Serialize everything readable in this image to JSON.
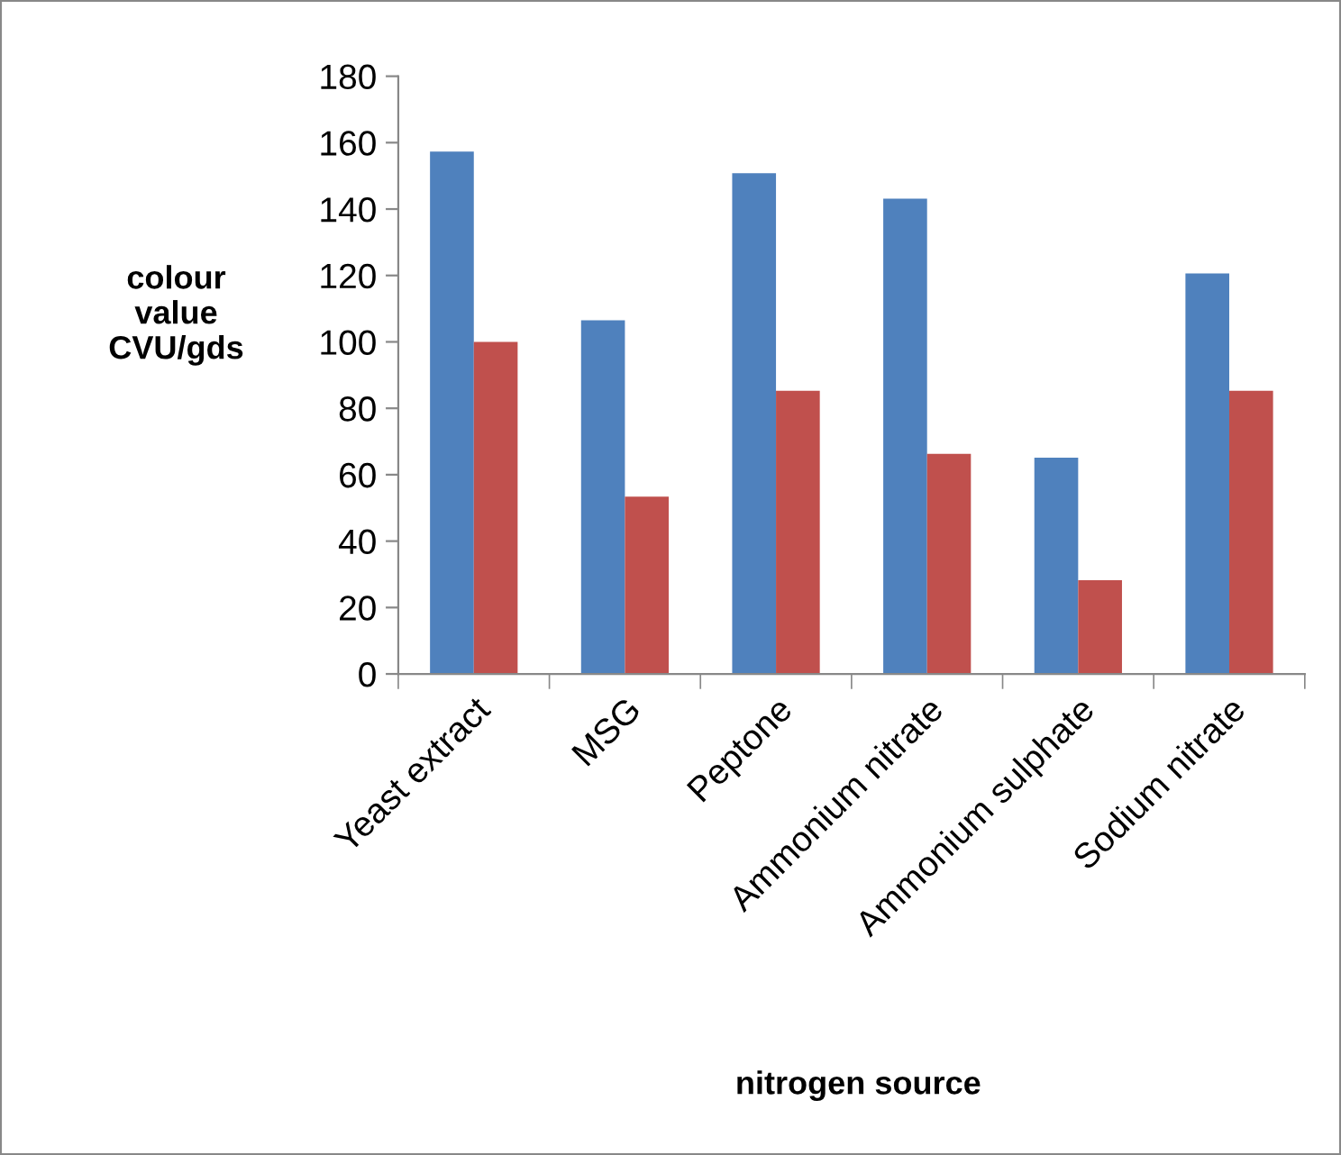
{
  "chart_data": {
    "type": "bar",
    "xlabel": "nitrogen source",
    "ylabel": "colour\nvalue\nCVU/gds",
    "categories": [
      "Yeast extract",
      "MSG",
      "Peptone",
      "Ammonium nitrate",
      "Ammonium sulphate",
      "Sodium nitrate"
    ],
    "series": [
      {
        "color": "#4f81bd",
        "values": [
          157.3,
          106.5,
          150.8,
          143.1,
          65.1,
          120.6
        ]
      },
      {
        "color": "#c0504d",
        "values": [
          100,
          53.4,
          85.3,
          66.3,
          28.2,
          85.3
        ]
      }
    ],
    "ylim": [
      0,
      180
    ],
    "yticks": [
      0,
      20,
      40,
      60,
      80,
      100,
      120,
      140,
      160,
      180
    ],
    "grid": false,
    "legend": false
  }
}
